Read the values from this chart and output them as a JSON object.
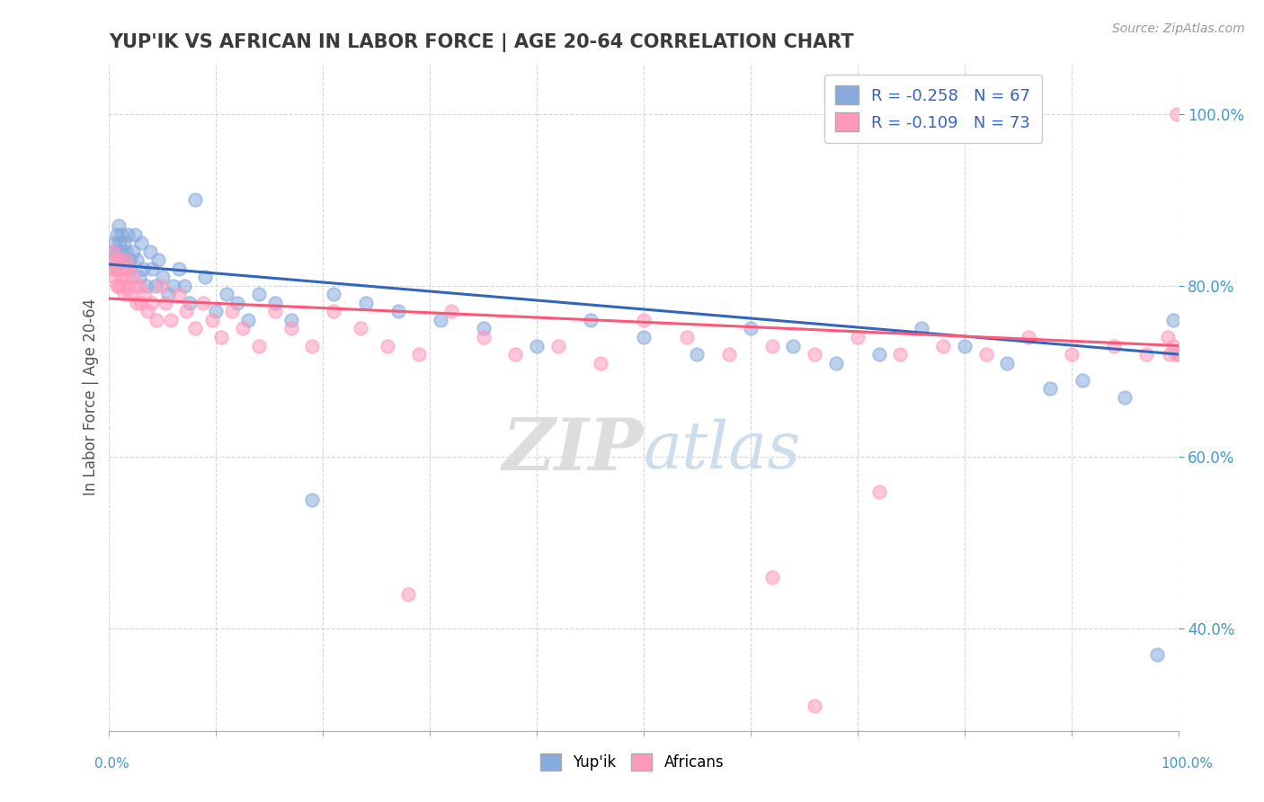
{
  "title": "YUP'IK VS AFRICAN IN LABOR FORCE | AGE 20-64 CORRELATION CHART",
  "source_text": "Source: ZipAtlas.com",
  "ylabel": "In Labor Force | Age 20-64",
  "xlim": [
    0.0,
    1.0
  ],
  "ylim": [
    0.28,
    1.06
  ],
  "legend_blue_text": "R = -0.258   N = 67",
  "legend_pink_text": "R = -0.109   N = 73",
  "legend_label_blue": "Yup'ik",
  "legend_label_pink": "Africans",
  "title_color": "#3a3a3a",
  "blue_scatter_color": "#88AADD",
  "pink_scatter_color": "#FF99BB",
  "blue_line_color": "#3366BB",
  "pink_line_color": "#FF5577",
  "watermark_zip": "ZIP",
  "watermark_atlas": "atlas",
  "yticks": [
    0.4,
    0.6,
    0.8,
    1.0
  ],
  "ytick_labels": [
    "40.0%",
    "60.0%",
    "80.0%",
    "100.0%"
  ],
  "blue_trend_x0": 0.0,
  "blue_trend_y0": 0.825,
  "blue_trend_x1": 1.0,
  "blue_trend_y1": 0.72,
  "pink_trend_x0": 0.0,
  "pink_trend_y0": 0.785,
  "pink_trend_x1": 1.0,
  "pink_trend_y1": 0.73,
  "yup_ik_x": [
    0.003,
    0.004,
    0.005,
    0.006,
    0.007,
    0.008,
    0.009,
    0.01,
    0.01,
    0.011,
    0.012,
    0.013,
    0.014,
    0.015,
    0.016,
    0.017,
    0.018,
    0.019,
    0.02,
    0.022,
    0.024,
    0.026,
    0.028,
    0.03,
    0.032,
    0.035,
    0.038,
    0.04,
    0.043,
    0.046,
    0.05,
    0.055,
    0.06,
    0.065,
    0.07,
    0.075,
    0.08,
    0.09,
    0.1,
    0.11,
    0.12,
    0.13,
    0.14,
    0.155,
    0.17,
    0.19,
    0.21,
    0.24,
    0.27,
    0.31,
    0.35,
    0.4,
    0.45,
    0.5,
    0.55,
    0.6,
    0.64,
    0.68,
    0.72,
    0.76,
    0.8,
    0.84,
    0.88,
    0.91,
    0.95,
    0.98,
    0.995
  ],
  "yup_ik_y": [
    0.84,
    0.83,
    0.85,
    0.82,
    0.86,
    0.84,
    0.87,
    0.85,
    0.83,
    0.86,
    0.84,
    0.83,
    0.85,
    0.82,
    0.84,
    0.86,
    0.83,
    0.82,
    0.83,
    0.84,
    0.86,
    0.83,
    0.81,
    0.85,
    0.82,
    0.8,
    0.84,
    0.82,
    0.8,
    0.83,
    0.81,
    0.79,
    0.8,
    0.82,
    0.8,
    0.78,
    0.9,
    0.81,
    0.77,
    0.79,
    0.78,
    0.76,
    0.79,
    0.78,
    0.76,
    0.55,
    0.79,
    0.78,
    0.77,
    0.76,
    0.75,
    0.73,
    0.76,
    0.74,
    0.72,
    0.75,
    0.73,
    0.71,
    0.72,
    0.75,
    0.73,
    0.71,
    0.68,
    0.69,
    0.67,
    0.37,
    0.76
  ],
  "africans_x": [
    0.003,
    0.004,
    0.005,
    0.006,
    0.007,
    0.008,
    0.009,
    0.01,
    0.011,
    0.012,
    0.013,
    0.014,
    0.015,
    0.016,
    0.017,
    0.018,
    0.02,
    0.022,
    0.024,
    0.026,
    0.028,
    0.03,
    0.033,
    0.036,
    0.04,
    0.044,
    0.048,
    0.053,
    0.058,
    0.065,
    0.072,
    0.08,
    0.088,
    0.096,
    0.105,
    0.115,
    0.125,
    0.14,
    0.155,
    0.17,
    0.19,
    0.21,
    0.235,
    0.26,
    0.29,
    0.32,
    0.35,
    0.38,
    0.42,
    0.46,
    0.5,
    0.54,
    0.58,
    0.62,
    0.66,
    0.7,
    0.74,
    0.78,
    0.82,
    0.86,
    0.9,
    0.94,
    0.97,
    0.99,
    0.992,
    0.995,
    0.998,
    0.999,
    1.0,
    0.72,
    0.62,
    0.28,
    0.66
  ],
  "africans_y": [
    0.82,
    0.84,
    0.81,
    0.83,
    0.8,
    0.82,
    0.8,
    0.83,
    0.81,
    0.8,
    0.82,
    0.79,
    0.81,
    0.83,
    0.8,
    0.82,
    0.79,
    0.81,
    0.8,
    0.78,
    0.8,
    0.78,
    0.79,
    0.77,
    0.78,
    0.76,
    0.8,
    0.78,
    0.76,
    0.79,
    0.77,
    0.75,
    0.78,
    0.76,
    0.74,
    0.77,
    0.75,
    0.73,
    0.77,
    0.75,
    0.73,
    0.77,
    0.75,
    0.73,
    0.72,
    0.77,
    0.74,
    0.72,
    0.73,
    0.71,
    0.76,
    0.74,
    0.72,
    0.73,
    0.72,
    0.74,
    0.72,
    0.73,
    0.72,
    0.74,
    0.72,
    0.73,
    0.72,
    0.74,
    0.72,
    0.73,
    0.72,
    1.0,
    0.72,
    0.56,
    0.46,
    0.44,
    0.31
  ]
}
